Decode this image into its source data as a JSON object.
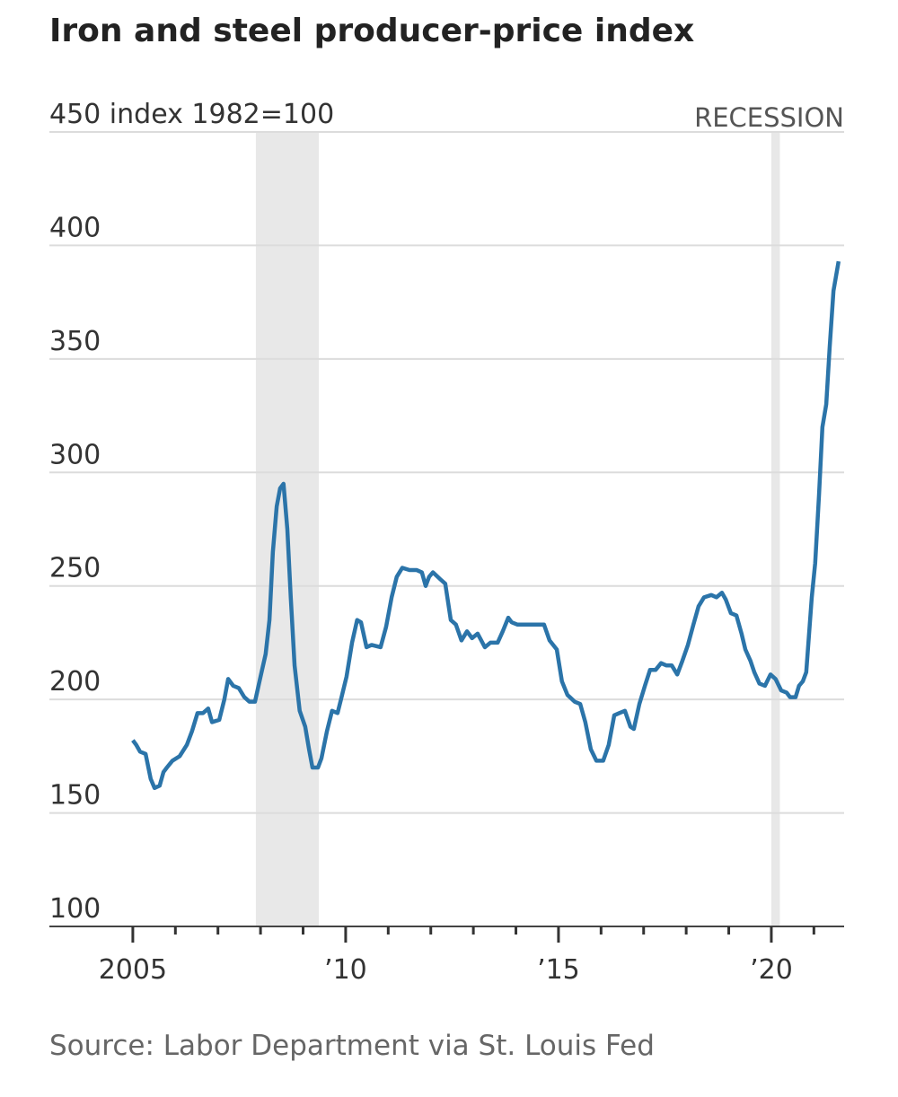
{
  "chart_data": {
    "type": "line",
    "title": "Iron and steel producer-price index",
    "source": "Source: Labor Department via St. Louis Fed",
    "recession_label": "RECESSION",
    "recessions": [
      [
        2007.89,
        2009.37
      ],
      [
        2020.0,
        2020.2
      ]
    ],
    "x": [
      2005.0,
      2005.08,
      2005.17,
      2005.3,
      2005.42,
      2005.51,
      2005.63,
      2005.72,
      2005.8,
      2005.93,
      2006.1,
      2006.27,
      2006.39,
      2006.52,
      2006.65,
      2006.77,
      2006.86,
      2007.03,
      2007.15,
      2007.24,
      2007.36,
      2007.49,
      2007.62,
      2007.74,
      2007.87,
      2008.0,
      2008.12,
      2008.21,
      2008.29,
      2008.38,
      2008.46,
      2008.54,
      2008.63,
      2008.71,
      2008.8,
      2008.92,
      2009.05,
      2009.14,
      2009.22,
      2009.35,
      2009.43,
      2009.56,
      2009.68,
      2009.81,
      2009.89,
      2010.02,
      2010.15,
      2010.27,
      2010.36,
      2010.49,
      2010.61,
      2010.82,
      2010.95,
      2011.08,
      2011.2,
      2011.33,
      2011.5,
      2011.67,
      2011.79,
      2011.88,
      2011.96,
      2012.05,
      2012.22,
      2012.34,
      2012.47,
      2012.59,
      2012.72,
      2012.85,
      2012.97,
      2013.1,
      2013.27,
      2013.4,
      2013.57,
      2013.69,
      2013.82,
      2013.9,
      2014.03,
      2014.24,
      2014.45,
      2014.66,
      2014.79,
      2014.96,
      2015.08,
      2015.21,
      2015.38,
      2015.51,
      2015.63,
      2015.76,
      2015.89,
      2016.05,
      2016.18,
      2016.31,
      2016.43,
      2016.56,
      2016.69,
      2016.77,
      2016.9,
      2017.03,
      2017.15,
      2017.28,
      2017.41,
      2017.53,
      2017.66,
      2017.79,
      2017.91,
      2018.04,
      2018.17,
      2018.29,
      2018.42,
      2018.59,
      2018.71,
      2018.84,
      2018.93,
      2019.05,
      2019.18,
      2019.3,
      2019.39,
      2019.51,
      2019.6,
      2019.72,
      2019.85,
      2019.98,
      2020.1,
      2020.23,
      2020.36,
      2020.44,
      2020.57,
      2020.65,
      2020.74,
      2020.82,
      2020.95,
      2021.03,
      2021.12,
      2021.2,
      2021.29,
      2021.37,
      2021.46,
      2021.58
    ],
    "series": [
      {
        "color": "#2b74a9",
        "values": [
          182,
          180,
          177,
          176,
          165,
          161,
          162,
          168,
          170,
          173,
          175,
          180,
          186,
          194,
          194,
          196,
          190,
          191,
          200,
          209,
          206,
          205,
          201,
          199,
          199,
          210,
          220,
          235,
          265,
          285,
          293,
          295,
          275,
          245,
          215,
          195,
          188,
          178,
          170,
          170,
          174,
          186,
          195,
          194,
          200,
          210,
          225,
          235,
          234,
          223,
          224,
          223,
          232,
          245,
          254,
          258,
          257,
          257,
          256,
          250,
          254,
          256,
          253,
          251,
          235,
          233,
          226,
          230,
          227,
          229,
          223,
          225,
          225,
          230,
          236,
          234,
          233,
          233,
          233,
          233,
          226,
          222,
          208,
          202,
          199,
          198,
          190,
          178,
          173,
          173,
          180,
          193,
          194,
          195,
          188,
          187,
          198,
          206,
          213,
          213,
          216,
          215,
          215,
          211,
          217,
          224,
          233,
          241,
          245,
          246,
          245,
          247,
          244,
          238,
          237,
          229,
          222,
          217,
          212,
          207,
          206,
          211,
          209,
          204,
          203,
          201,
          201,
          206,
          208,
          212,
          245,
          260,
          290,
          320,
          330,
          355,
          380,
          393
        ]
      }
    ],
    "xlim": [
      2003.04,
      2021.71
    ],
    "xticks": [
      {
        "value": 2005,
        "label": "2005"
      },
      {
        "value": 2010,
        "label": "’10"
      },
      {
        "value": 2015,
        "label": "’15"
      },
      {
        "value": 2020,
        "label": "’20"
      }
    ],
    "xminorticks": [
      2006,
      2007,
      2008,
      2009,
      2011,
      2012,
      2013,
      2014,
      2016,
      2017,
      2018,
      2019,
      2021
    ],
    "ylim": [
      100,
      450
    ],
    "yticks": [
      100,
      150,
      200,
      250,
      300,
      350,
      400,
      {
        "value": 450,
        "label": "450 index 1982=100"
      }
    ],
    "grid": true
  }
}
